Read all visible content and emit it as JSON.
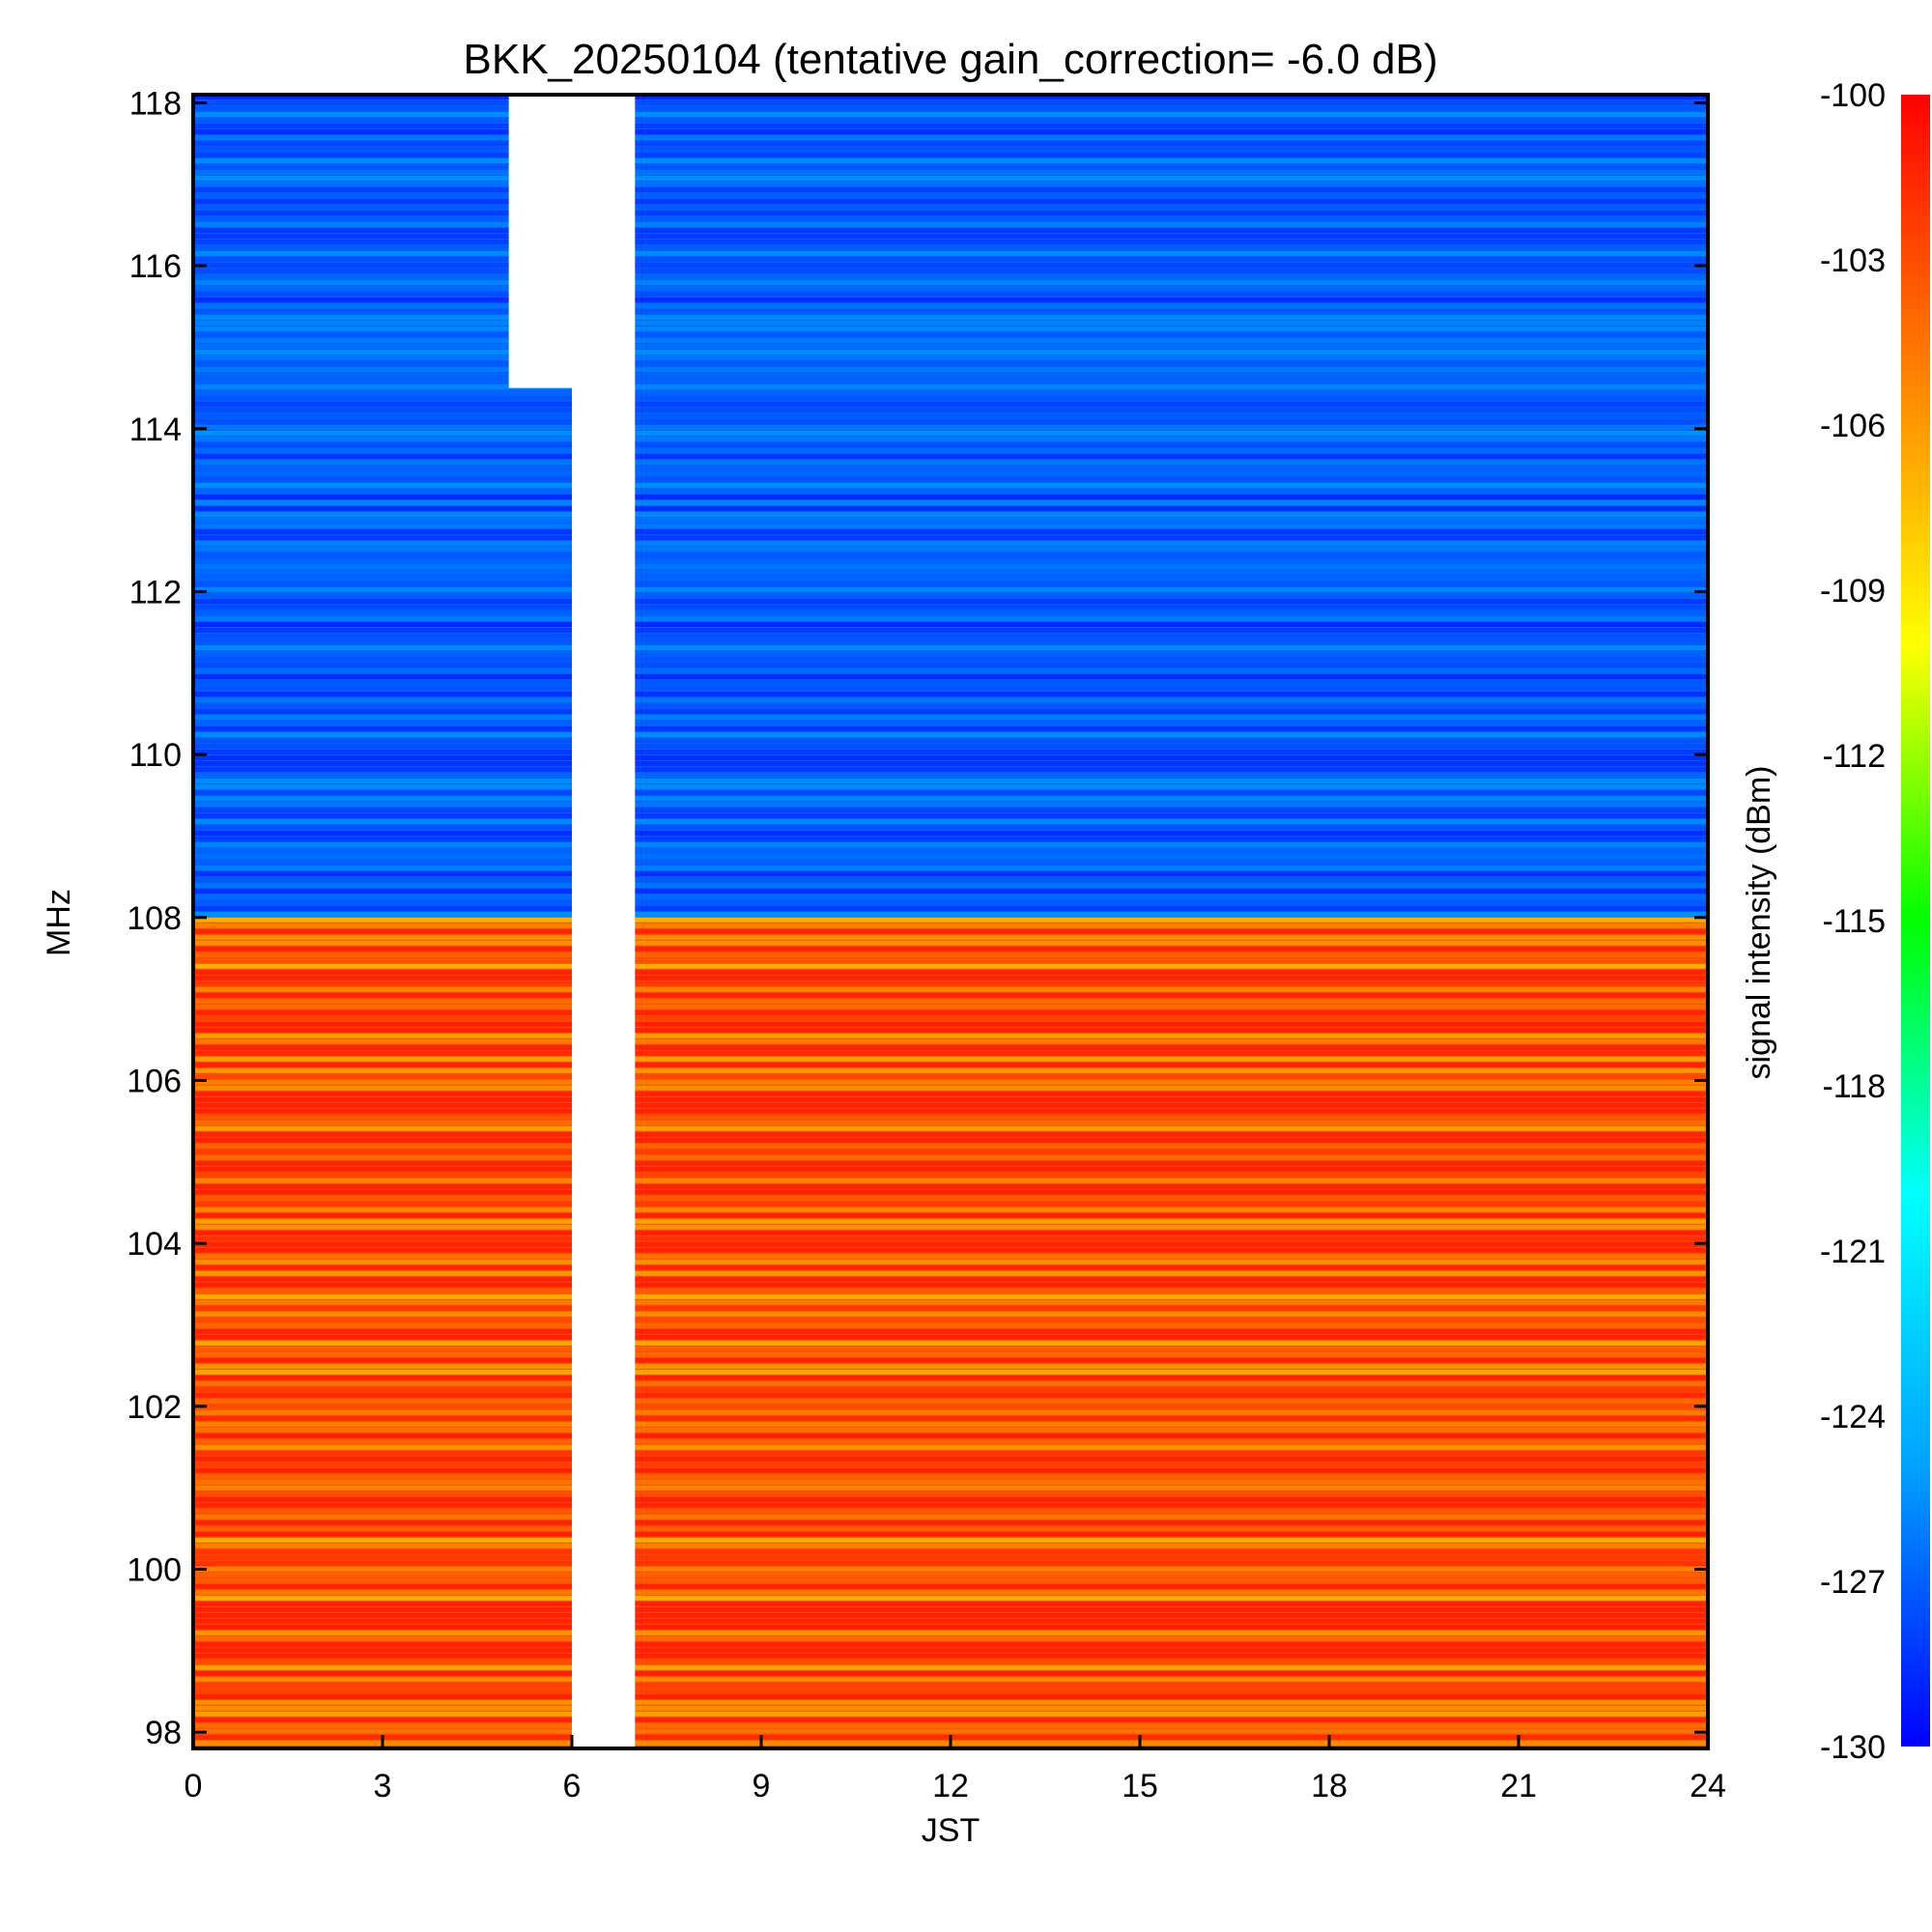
{
  "chart_data": {
    "type": "heatmap",
    "title": "BKK_20250104 (tentative gain_correction= -6.0 dB)",
    "xlabel": "JST",
    "ylabel": "MHz",
    "colorbar_label": "signal intensity (dBm)",
    "xlim": [
      0,
      24
    ],
    "ylim": [
      97.8,
      118.1
    ],
    "clim": [
      -130,
      -100
    ],
    "x_ticks": [
      "0",
      "3",
      "6",
      "9",
      "12",
      "15",
      "18",
      "21",
      "24"
    ],
    "y_ticks": [
      "98",
      "100",
      "102",
      "104",
      "106",
      "108",
      "110",
      "112",
      "114",
      "116",
      "118"
    ],
    "colorbar_ticks": [
      "-100",
      "-103",
      "-106",
      "-109",
      "-112",
      "-115",
      "-118",
      "-121",
      "-124",
      "-127",
      "-130"
    ],
    "colormap": [
      "#0000ff",
      "#00a0ff",
      "#00ffff",
      "#00ff00",
      "#ffff00",
      "#ff8000",
      "#ff0000"
    ],
    "regions": [
      {
        "freq": [
          108.0,
          118.1
        ],
        "level_dBm": -127
      },
      {
        "freq": [
          97.8,
          108.0
        ],
        "level_dBm": -103
      }
    ],
    "data_gaps": [
      {
        "time": [
          5.0,
          6.0
        ],
        "freq": [
          114.5,
          118.1
        ]
      },
      {
        "time": [
          6.0,
          7.0
        ],
        "freq": [
          97.8,
          118.1
        ]
      }
    ]
  }
}
